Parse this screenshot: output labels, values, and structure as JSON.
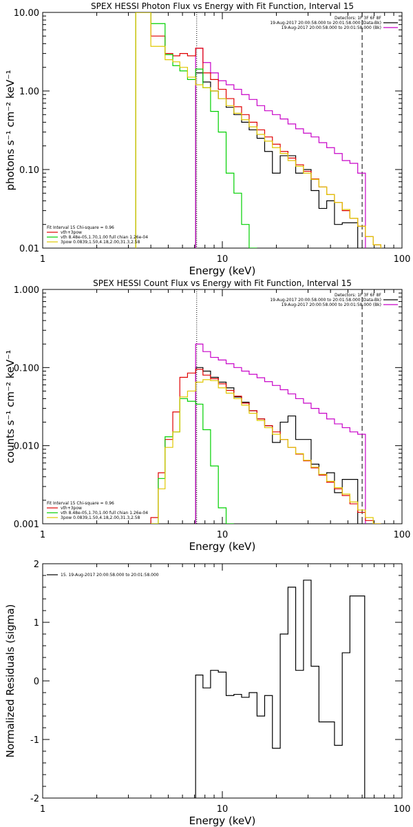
{
  "chart_data": [
    {
      "type": "line",
      "title": "SPEX HESSI Photon Flux vs Energy with Fit Function, Interval 15",
      "xlabel": "Energy (keV)",
      "ylabel": "photons s⁻¹ cm⁻² keV⁻¹",
      "xscale": "log",
      "yscale": "log",
      "xlim": [
        1,
        100
      ],
      "ylim": [
        0.01,
        10
      ],
      "xticks": [
        {
          "v": 1,
          "label": "1"
        },
        {
          "v": 10,
          "label": "10"
        },
        {
          "v": 100,
          "label": "100"
        }
      ],
      "yticks": [
        {
          "v": 0.01,
          "label": "0.01"
        },
        {
          "v": 0.1,
          "label": "0.10"
        },
        {
          "v": 1,
          "label": "1.00"
        },
        {
          "v": 10,
          "label": "10.00"
        }
      ],
      "vlines": [
        {
          "x": 7.2,
          "style": "dotted"
        },
        {
          "x": 60,
          "style": "dashed"
        }
      ],
      "header_lines": [
        "Detectors: 1F 3F 6F 8F",
        "19-Aug-2017 20:00:58.000 to 20:01:58.000 (Data-Bk)",
        "19-Aug-2017 20:00:58.000 to 20:01:58.000 (Bk)"
      ],
      "header_colors": [
        "",
        "#000000",
        "#c800c8"
      ],
      "legend_lines": [
        "Fit Interval 15   Chi-square = 0.96",
        "vth+3pow",
        "vth 8.48e-05,1.70,1.00  full chian 1.26e-04",
        "3pow 0.0839,1.50,4.18,2.00,31.3,2.58"
      ],
      "legend_colors": [
        "",
        "#e00000",
        "#00d000",
        "#e0c800"
      ],
      "edges": [
        3.3,
        3.6,
        4.0,
        4.4,
        4.8,
        5.3,
        5.8,
        6.4,
        7.1,
        7.8,
        8.6,
        9.5,
        10.5,
        11.6,
        12.8,
        14.1,
        15.6,
        17.2,
        19.0,
        21.0,
        23.2,
        25.6,
        28.3,
        31.2,
        34.5,
        38.1,
        42.1,
        46.5,
        51.3,
        56.7,
        62.6,
        69.1,
        76.3
      ],
      "series": [
        {
          "name": "",
          "color": "#000000",
          "start": 8,
          "values": [
            1.7,
            1.3,
            1.0,
            0.8,
            0.62,
            0.5,
            0.4,
            0.32,
            0.25,
            0.17,
            0.09,
            0.15,
            0.15,
            0.09,
            0.1,
            0.054,
            0.032,
            0.04,
            0.02,
            0.021,
            0.021
          ]
        },
        {
          "name": "",
          "color": "#c800c8",
          "start": 8,
          "values": [
            3.5,
            2.3,
            1.7,
            1.35,
            1.2,
            1.05,
            0.9,
            0.78,
            0.65,
            0.56,
            0.5,
            0.44,
            0.38,
            0.33,
            0.29,
            0.26,
            0.22,
            0.19,
            0.16,
            0.13,
            0.12,
            0.09
          ]
        },
        {
          "name": "",
          "color": "#e00000",
          "start": 0,
          "values": [
            10,
            10,
            5,
            5,
            3,
            2.8,
            3.0,
            2.8,
            3.5,
            1.7,
            1.4,
            1.05,
            0.8,
            0.63,
            0.5,
            0.4,
            0.32,
            0.26,
            0.21,
            0.17,
            0.14,
            0.115,
            0.095,
            0.076,
            0.06,
            0.048,
            0.038,
            0.03,
            0.024,
            0.019,
            0.014,
            0.011
          ]
        },
        {
          "name": "",
          "color": "#00d000",
          "start": 0,
          "values": [
            10,
            10,
            7.2,
            7.2,
            2.9,
            2.1,
            1.8,
            1.4,
            1.9,
            1.1,
            0.55,
            0.3,
            0.09,
            0.05,
            0.02,
            0.01
          ]
        },
        {
          "name": "",
          "color": "#e0c800",
          "start": 0,
          "values": [
            10,
            10,
            3.7,
            3.7,
            2.5,
            2.35,
            2.0,
            1.5,
            1.2,
            1.1,
            1.0,
            0.8,
            0.65,
            0.52,
            0.43,
            0.35,
            0.28,
            0.23,
            0.19,
            0.16,
            0.13,
            0.11,
            0.09,
            0.075,
            0.06,
            0.048,
            0.038,
            0.031,
            0.024,
            0.019,
            0.014,
            0.011
          ]
        }
      ]
    },
    {
      "type": "line",
      "title": "SPEX HESSI Count Flux vs Energy with Fit Function, Interval 15",
      "xlabel": "Energy (keV)",
      "ylabel": "counts s⁻¹ cm⁻² keV⁻¹",
      "xscale": "log",
      "yscale": "log",
      "xlim": [
        1,
        100
      ],
      "ylim": [
        0.001,
        1
      ],
      "xticks": [
        {
          "v": 1,
          "label": "1"
        },
        {
          "v": 10,
          "label": "10"
        },
        {
          "v": 100,
          "label": "100"
        }
      ],
      "yticks": [
        {
          "v": 0.001,
          "label": "0.001"
        },
        {
          "v": 0.01,
          "label": "0.010"
        },
        {
          "v": 0.1,
          "label": "0.100"
        },
        {
          "v": 1,
          "label": "1.000"
        }
      ],
      "vlines": [
        {
          "x": 7.2,
          "style": "dotted"
        },
        {
          "x": 60,
          "style": "dashed"
        }
      ],
      "header_lines": [
        "Detectors: 1F 3F 6F 8F",
        "19-Aug-2017 20:00:58.000 to 20:01:58.000 (Data-Bk)",
        "19-Aug-2017 20:00:58.000 to 20:01:58.000 (Bk)"
      ],
      "header_colors": [
        "",
        "#000000",
        "#c800c8"
      ],
      "legend_lines": [
        "Fit Interval 15   Chi-square = 0.96",
        "vth+3pow",
        "vth 8.48e-05,1.70,1.00  full chian 1.26e-04",
        "3pow 0.0839,1.50,4.18,2.00,31.3,2.58"
      ],
      "legend_colors": [
        "",
        "#e00000",
        "#00d000",
        "#e0c800"
      ],
      "edges": [
        4.0,
        4.4,
        4.8,
        5.3,
        5.8,
        6.4,
        7.1,
        7.8,
        8.6,
        9.5,
        10.5,
        11.6,
        12.8,
        14.1,
        15.6,
        17.2,
        19.0,
        21.0,
        23.2,
        25.6,
        28.3,
        31.2,
        34.5,
        38.1,
        42.1,
        46.5,
        51.3,
        56.7,
        62.6,
        69.1,
        76.3,
        84.2,
        93.0
      ],
      "series": [
        {
          "name": "",
          "color": "#000000",
          "start": 6,
          "values": [
            0.1,
            0.09,
            0.075,
            0.065,
            0.055,
            0.042,
            0.036,
            0.028,
            0.022,
            0.018,
            0.011,
            0.02,
            0.024,
            0.012,
            0.012,
            0.0058,
            0.0042,
            0.0045,
            0.0025,
            0.0037,
            0.0037
          ]
        },
        {
          "name": "",
          "color": "#c800c8",
          "start": 6,
          "values": [
            0.2,
            0.16,
            0.135,
            0.125,
            0.112,
            0.1,
            0.09,
            0.082,
            0.074,
            0.066,
            0.059,
            0.052,
            0.046,
            0.04,
            0.035,
            0.03,
            0.026,
            0.022,
            0.019,
            0.017,
            0.015,
            0.014
          ]
        },
        {
          "name": "",
          "color": "#e00000",
          "start": 0,
          "values": [
            0.0012,
            0.0045,
            0.012,
            0.027,
            0.075,
            0.085,
            0.095,
            0.08,
            0.072,
            0.062,
            0.051,
            0.043,
            0.035,
            0.028,
            0.022,
            0.018,
            0.015,
            0.012,
            0.0095,
            0.0078,
            0.0064,
            0.0052,
            0.0042,
            0.0034,
            0.0028,
            0.0023,
            0.0018,
            0.0014,
            0.0011,
            0.0009
          ]
        },
        {
          "name": "",
          "color": "#00d000",
          "start": 0,
          "values": [
            0.0006,
            0.0038,
            0.013,
            0.015,
            0.04,
            0.037,
            0.034,
            0.016,
            0.0055,
            0.0016,
            0.0006
          ]
        },
        {
          "name": "",
          "color": "#e0c800",
          "start": 0,
          "values": [
            0.0006,
            0.0028,
            0.0095,
            0.015,
            0.042,
            0.05,
            0.065,
            0.07,
            0.068,
            0.055,
            0.047,
            0.04,
            0.033,
            0.026,
            0.021,
            0.017,
            0.014,
            0.012,
            0.0095,
            0.0079,
            0.0065,
            0.0053,
            0.0043,
            0.0035,
            0.0029,
            0.0024,
            0.0019,
            0.0015,
            0.0012,
            0.001
          ]
        }
      ]
    },
    {
      "type": "line",
      "title": "",
      "xlabel": "Energy (keV)",
      "ylabel": "Normalized Residuals (sigma)",
      "xscale": "log",
      "yscale": "linear",
      "xlim": [
        1,
        100
      ],
      "ylim": [
        -2,
        2
      ],
      "xticks": [
        {
          "v": 1,
          "label": "1"
        },
        {
          "v": 10,
          "label": "10"
        },
        {
          "v": 100,
          "label": "100"
        }
      ],
      "yticks": [
        {
          "v": -2,
          "label": "-2"
        },
        {
          "v": -1,
          "label": "-1"
        },
        {
          "v": 0,
          "label": "0"
        },
        {
          "v": 1,
          "label": "1"
        },
        {
          "v": 2,
          "label": "2"
        }
      ],
      "legend_lines": [
        "15. 19-Aug-2017 20:00:58.000 to 20:01:58.000"
      ],
      "legend_colors": [
        "#000000"
      ],
      "edges": [
        7.1,
        7.8,
        8.6,
        9.5,
        10.5,
        11.6,
        12.8,
        14.1,
        15.6,
        17.2,
        19.0,
        21.0,
        23.2,
        25.6,
        28.3,
        31.2,
        34.5,
        38.1,
        42.1,
        46.5,
        51.3,
        56.7,
        62.0
      ],
      "series": [
        {
          "name": "",
          "color": "#000000",
          "start": 0,
          "values": [
            0.1,
            -0.12,
            0.18,
            0.15,
            -0.25,
            -0.23,
            -0.28,
            -0.2,
            -0.6,
            -0.25,
            -1.15,
            0.8,
            1.6,
            0.18,
            1.72,
            0.25,
            -0.7,
            -0.7,
            -1.1,
            0.48,
            1.45,
            1.45
          ]
        }
      ]
    }
  ]
}
